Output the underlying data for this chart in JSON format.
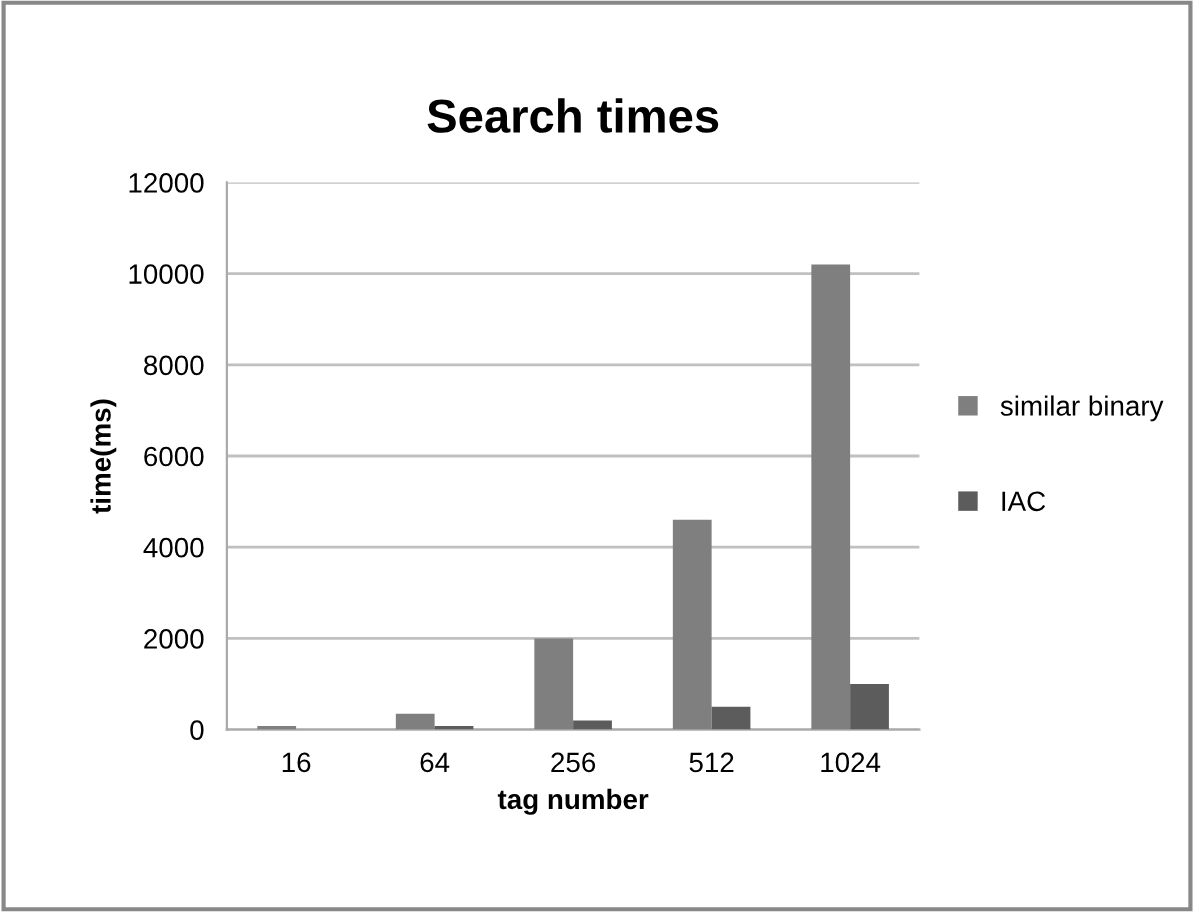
{
  "chart_data": {
    "type": "bar",
    "title": "Search times",
    "xlabel": "tag number",
    "ylabel": "time(ms)",
    "categories": [
      "16",
      "64",
      "256",
      "512",
      "1024"
    ],
    "series": [
      {
        "name": "similar binary",
        "color": "#7f7f7f",
        "values": [
          80,
          350,
          2000,
          4600,
          10200
        ]
      },
      {
        "name": "IAC",
        "color": "#5c5c5c",
        "values": [
          null,
          80,
          200,
          500,
          1000
        ]
      }
    ],
    "ylim": [
      0,
      12000
    ],
    "yticks": [
      0,
      2000,
      4000,
      6000,
      8000,
      10000,
      12000
    ],
    "grid": "y",
    "legend": "right"
  }
}
